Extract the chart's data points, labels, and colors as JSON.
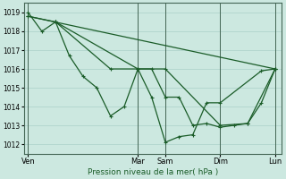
{
  "xlabel": "Pression niveau de la mer( hPa )",
  "ylim": [
    1011.5,
    1019.5
  ],
  "yticks": [
    1012,
    1013,
    1014,
    1015,
    1016,
    1017,
    1018,
    1019
  ],
  "bg_color": "#cce8e0",
  "grid_color": "#aad0c8",
  "line_color": "#1a5c28",
  "xtick_labels": [
    "Ven",
    "Mar",
    "Sam",
    "Dim",
    "Lun"
  ],
  "xtick_positions": [
    0,
    8,
    10,
    14,
    18
  ],
  "vlines": [
    0,
    8,
    10,
    14,
    18
  ],
  "series1": [
    [
      0,
      1019.0
    ],
    [
      1,
      1018.0
    ],
    [
      2,
      1018.5
    ],
    [
      3,
      1016.7
    ],
    [
      4,
      1015.6
    ],
    [
      5,
      1015.0
    ],
    [
      6,
      1013.5
    ],
    [
      7,
      1014.0
    ],
    [
      8,
      1016.0
    ],
    [
      9,
      1016.0
    ],
    [
      10,
      1014.5
    ],
    [
      11,
      1014.5
    ],
    [
      12,
      1013.0
    ],
    [
      13,
      1013.1
    ],
    [
      14,
      1012.9
    ],
    [
      15,
      1013.0
    ],
    [
      16,
      1013.1
    ],
    [
      17,
      1014.2
    ],
    [
      18,
      1016.0
    ]
  ],
  "series2": [
    [
      0,
      1018.8
    ],
    [
      18,
      1016.0
    ]
  ],
  "series3": [
    [
      0,
      1018.8
    ],
    [
      2,
      1018.5
    ],
    [
      8,
      1016.0
    ],
    [
      10,
      1016.0
    ],
    [
      14,
      1013.0
    ],
    [
      16,
      1013.1
    ],
    [
      18,
      1016.0
    ]
  ],
  "series4": [
    [
      2,
      1018.5
    ],
    [
      6,
      1016.0
    ],
    [
      8,
      1016.0
    ],
    [
      9,
      1014.5
    ],
    [
      10,
      1012.1
    ],
    [
      11,
      1012.4
    ],
    [
      12,
      1012.5
    ],
    [
      13,
      1014.2
    ],
    [
      14,
      1014.2
    ],
    [
      17,
      1015.9
    ],
    [
      18,
      1016.0
    ]
  ]
}
